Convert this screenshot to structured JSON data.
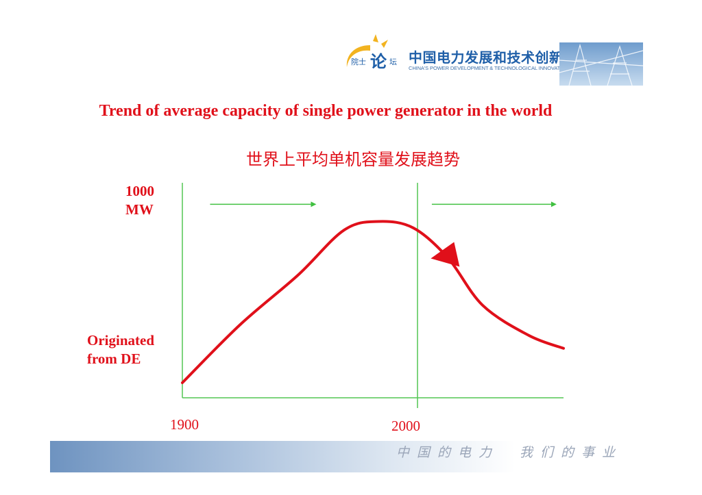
{
  "header": {
    "logo_cn": "中国电力发展和技术创新",
    "logo_en": "CHINA'S POWER DEVELOPMENT & TECHNOLOGICAL INNOVATION",
    "logo_mark_text": "院士论坛"
  },
  "colors": {
    "accent": "#e0101a",
    "axis": "#52c552",
    "brand_blue": "#1f5fa8"
  },
  "chart_data": {
    "type": "line",
    "title": "Trend of average capacity of single power generator in the world",
    "subtitle": "世界上平均单机容量发展趋势",
    "ylabel_top": "1000\nMW",
    "ylabel_bottom": "Originated\nfrom DE",
    "x_ticks": [
      "1900",
      "2000"
    ],
    "xlim": [
      1900,
      2065
    ],
    "ylim": [
      0,
      1000
    ],
    "series": [
      {
        "x": [
          1900,
          1925,
          1950,
          1970,
          1985,
          2000,
          2015,
          2030,
          2050,
          2065
        ],
        "y": [
          70,
          340,
          570,
          780,
          820,
          790,
          650,
          430,
          290,
          230
        ]
      }
    ],
    "annotations": [
      {
        "type": "arrow",
        "from_x": 1912,
        "to_x": 1958,
        "y": 900
      },
      {
        "type": "arrow",
        "from_x": 2008,
        "to_x": 2062,
        "y": 900
      },
      {
        "type": "arrowhead",
        "x": 2020,
        "y": 610
      }
    ],
    "grid": false
  },
  "footer": {
    "slogan": "中国的电力　我们的事业"
  }
}
